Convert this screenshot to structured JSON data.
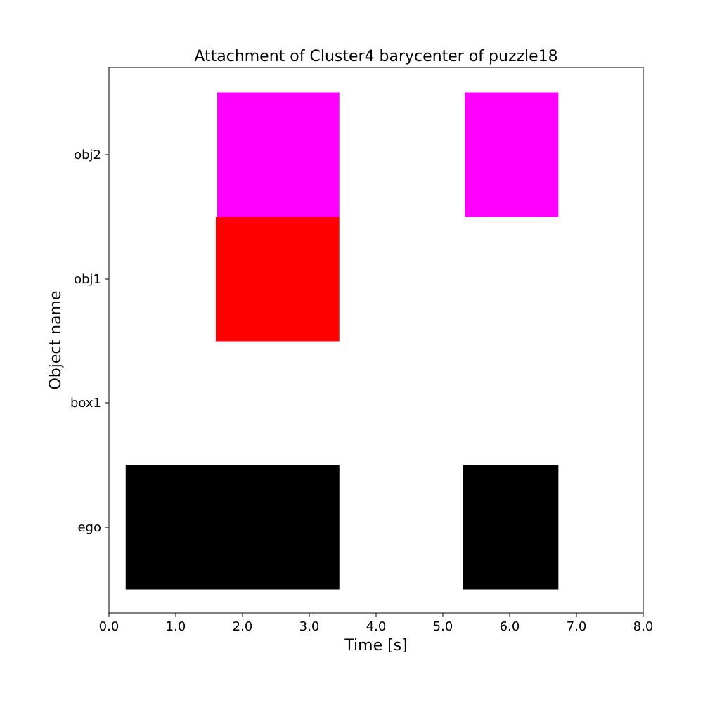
{
  "chart_data": {
    "type": "broken_barh",
    "title": "Attachment of Cluster4 barycenter of puzzle18",
    "xlabel": "Time [s]",
    "ylabel": "Object name",
    "xlim": [
      0.0,
      8.0
    ],
    "xticks": [
      "0.0",
      "1.0",
      "2.0",
      "3.0",
      "4.0",
      "5.0",
      "6.0",
      "7.0",
      "8.0"
    ],
    "xtick_values": [
      0,
      1,
      2,
      3,
      4,
      5,
      6,
      7,
      8
    ],
    "categories": [
      "ego",
      "box1",
      "obj1",
      "obj2"
    ],
    "series": [
      {
        "name": "ego",
        "color": "#000000",
        "intervals": [
          [
            0.25,
            3.45
          ],
          [
            5.3,
            6.73
          ]
        ]
      },
      {
        "name": "box1",
        "color": "#0000ff",
        "intervals": []
      },
      {
        "name": "obj1",
        "color": "#ff0000",
        "intervals": [
          [
            1.6,
            3.45
          ]
        ]
      },
      {
        "name": "obj2",
        "color": "#ff00ff",
        "intervals": [
          [
            1.62,
            3.45
          ],
          [
            5.33,
            6.73
          ]
        ]
      }
    ],
    "grid": false
  }
}
